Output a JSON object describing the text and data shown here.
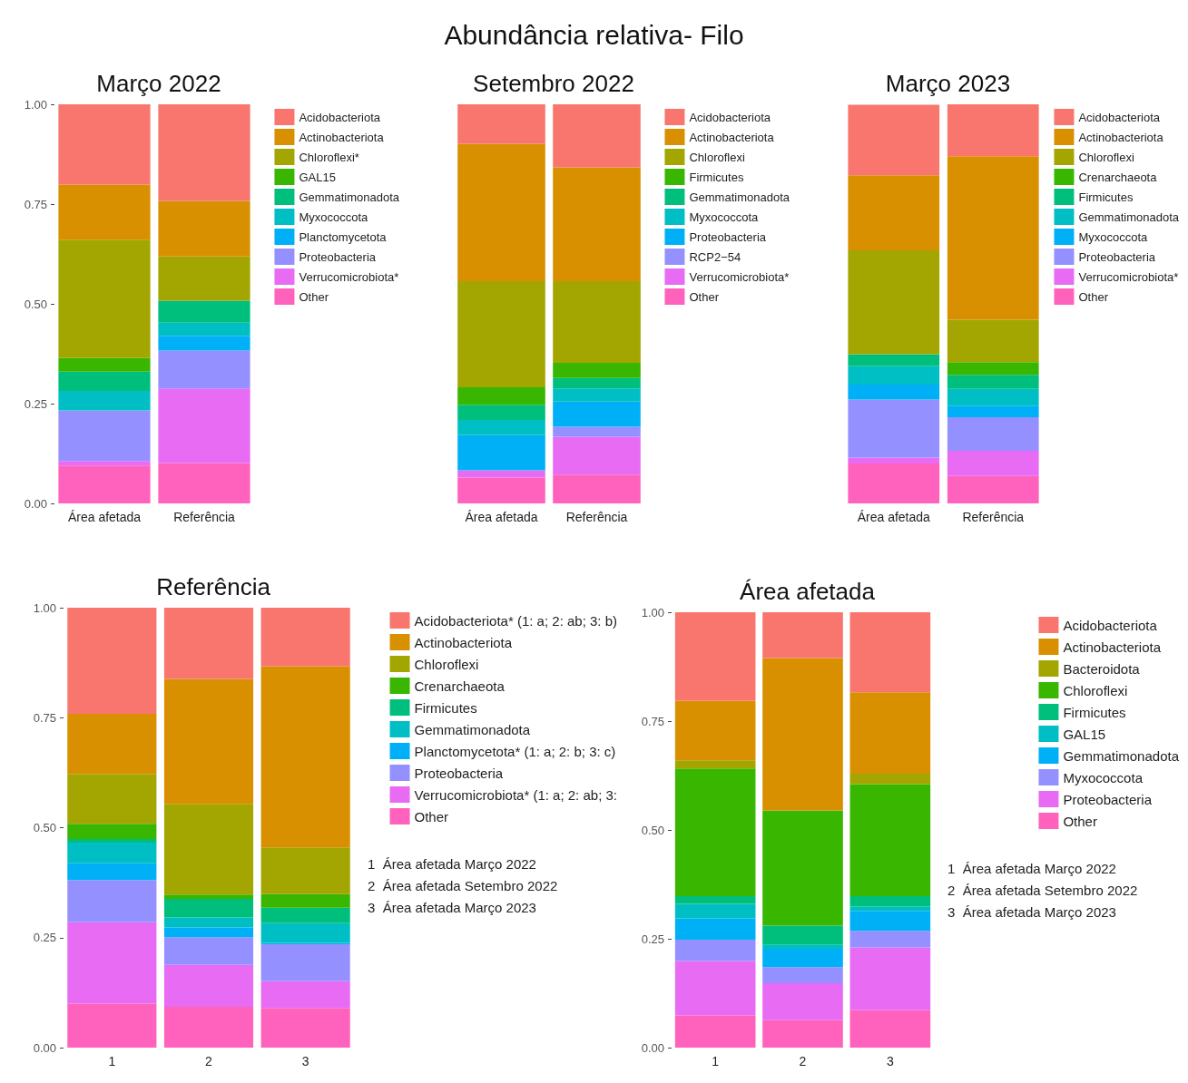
{
  "chart_data": [
    {
      "type": "bar",
      "title": "Março 2022",
      "annotations": [
        "Abundância relativa- Filo"
      ],
      "categories": [
        "Área afetada",
        "Referência"
      ],
      "stacked": true,
      "ylim": [
        0,
        1
      ],
      "yticks": [
        {
          "value": 0,
          "label": "0.00"
        },
        {
          "value": 0.25,
          "label": "0.25"
        },
        {
          "value": 0.5,
          "label": "0.50"
        },
        {
          "value": 0.75,
          "label": "0.75"
        },
        {
          "value": 1,
          "label": "1.00"
        }
      ],
      "grid": false,
      "legend": "right",
      "series": [
        {
          "name": "Other",
          "color": "#ff62bc",
          "values": [
            0.095,
            0.101
          ]
        },
        {
          "name": "Verrucomicrobiota*",
          "color": "#e76bf3",
          "values": [
            0.011,
            0.187
          ]
        },
        {
          "name": "Proteobacteria",
          "color": "#9590ff",
          "values": [
            0.127,
            0.095
          ]
        },
        {
          "name": "Planctomycetota",
          "color": "#00b0f6",
          "values": [
            0,
            0.037
          ]
        },
        {
          "name": "Myxococcota",
          "color": "#00bfc4",
          "values": [
            0.049,
            0.033
          ]
        },
        {
          "name": "Gemmatimonadota",
          "color": "#00bf7d",
          "values": [
            0.048,
            0.055
          ]
        },
        {
          "name": "GAL15",
          "color": "#39b600",
          "values": [
            0.034,
            0
          ]
        },
        {
          "name": "Chloroflexi*",
          "color": "#a3a500",
          "values": [
            0.297,
            0.111
          ]
        },
        {
          "name": "Actinobacteriota",
          "color": "#d89000",
          "values": [
            0.138,
            0.139
          ]
        },
        {
          "name": "Acidobacteriota",
          "color": "#f8766d",
          "values": [
            0.201,
            0.242
          ]
        }
      ]
    },
    {
      "type": "bar",
      "title": "Setembro 2022",
      "categories": [
        "Área afetada",
        "Referência"
      ],
      "stacked": true,
      "ylim": [
        0,
        1
      ],
      "tick_labels": "x",
      "grid": false,
      "legend": "right",
      "series": [
        {
          "name": "Other",
          "color": "#ff62bc",
          "values": [
            0.065,
            0.072
          ]
        },
        {
          "name": "Verrucomicrobiota*",
          "color": "#e76bf3",
          "values": [
            0.018,
            0.095
          ]
        },
        {
          "name": "RCP2−54",
          "color": "#9590ff",
          "values": [
            0,
            0.025
          ]
        },
        {
          "name": "Proteobacteria",
          "color": "#00b0f6",
          "values": [
            0.088,
            0.063
          ]
        },
        {
          "name": "Myxococcota",
          "color": "#00bfc4",
          "values": [
            0.038,
            0.033
          ]
        },
        {
          "name": "Gemmatimonadota",
          "color": "#00bf7d",
          "values": [
            0.038,
            0.026
          ]
        },
        {
          "name": "Firmicutes",
          "color": "#39b600",
          "values": [
            0.044,
            0.038
          ]
        },
        {
          "name": "Chloroflexi",
          "color": "#a3a500",
          "values": [
            0.266,
            0.205
          ]
        },
        {
          "name": "Actinobacteriota",
          "color": "#d89000",
          "values": [
            0.344,
            0.285
          ]
        },
        {
          "name": "Acidobacteriota",
          "color": "#f8766d",
          "values": [
            0.099,
            0.158
          ]
        }
      ]
    },
    {
      "type": "bar",
      "title": "Março 2023",
      "categories": [
        "Área afetada",
        "Referência"
      ],
      "stacked": true,
      "ylim": [
        0,
        1
      ],
      "tick_labels": "x",
      "grid": false,
      "legend": "right",
      "series": [
        {
          "name": "Other",
          "color": "#ff62bc",
          "values": [
            0.1,
            0.069
          ]
        },
        {
          "name": "Verrucomicrobiota*",
          "color": "#e76bf3",
          "values": [
            0.015,
            0.063
          ]
        },
        {
          "name": "Proteobacteria",
          "color": "#9590ff",
          "values": [
            0.145,
            0.084
          ]
        },
        {
          "name": "Myxococcota",
          "color": "#00b0f6",
          "values": [
            0.038,
            0.029
          ]
        },
        {
          "name": "Gemmatimonadota",
          "color": "#00bfc4",
          "values": [
            0.046,
            0.042
          ]
        },
        {
          "name": "Firmicutes",
          "color": "#00bf7d",
          "values": [
            0.03,
            0.035
          ]
        },
        {
          "name": "Crenarchaeota",
          "color": "#39b600",
          "values": [
            0,
            0.032
          ]
        },
        {
          "name": "Chloroflexi",
          "color": "#a3a500",
          "values": [
            0.26,
            0.106
          ]
        },
        {
          "name": "Actinobacteriota",
          "color": "#d89000",
          "values": [
            0.188,
            0.41
          ]
        },
        {
          "name": "Acidobacteriota",
          "color": "#f8766d",
          "values": [
            0.177,
            0.13
          ]
        }
      ]
    },
    {
      "type": "bar",
      "title": "Referência",
      "annotations": [
        "1  Área afetada Março 2022",
        "2  Área afetada Setembro 2022",
        "3  Área afetada Março 2023"
      ],
      "categories": [
        "1",
        "2",
        "3"
      ],
      "stacked": true,
      "ylim": [
        0,
        1
      ],
      "yticks": [
        {
          "value": 0,
          "label": "0.00"
        },
        {
          "value": 0.25,
          "label": "0.25"
        },
        {
          "value": 0.5,
          "label": "0.50"
        },
        {
          "value": 0.75,
          "label": "0.75"
        },
        {
          "value": 1,
          "label": "1.00"
        }
      ],
      "grid": false,
      "legend": "right",
      "series": [
        {
          "name": "Other",
          "color": "#ff62bc",
          "values": [
            0.1,
            0.093,
            0.09
          ]
        },
        {
          "name": "Verrucomicrobiota* (1: a; 2: ab; 3:",
          "color": "#e76bf3",
          "values": [
            0.185,
            0.095,
            0.061
          ]
        },
        {
          "name": "Proteobacteria",
          "color": "#9590ff",
          "values": [
            0.096,
            0.063,
            0.084
          ]
        },
        {
          "name": "Planctomycetota* (1: a; 2: b; 3: c)",
          "color": "#00b0f6",
          "values": [
            0.038,
            0.022,
            0.003
          ]
        },
        {
          "name": "Gemmatimonadota",
          "color": "#00bfc4",
          "values": [
            0.047,
            0.023,
            0.045
          ]
        },
        {
          "name": "Firmicutes",
          "color": "#00bf7d",
          "values": [
            0.008,
            0.042,
            0.035
          ]
        },
        {
          "name": "Crenarchaeota",
          "color": "#39b600",
          "values": [
            0.035,
            0.01,
            0.031
          ]
        },
        {
          "name": "Chloroflexi",
          "color": "#a3a500",
          "values": [
            0.113,
            0.206,
            0.106
          ]
        },
        {
          "name": "Actinobacteriota",
          "color": "#d89000",
          "values": [
            0.137,
            0.284,
            0.412
          ]
        },
        {
          "name": "Acidobacteriota* (1: a; 2: ab; 3: b)",
          "color": "#f8766d",
          "values": [
            0.241,
            0.162,
            0.133
          ]
        }
      ]
    },
    {
      "type": "bar",
      "title": "Área afetada",
      "annotations": [
        "1  Área afetada Março 2022",
        "2  Área afetada Setembro 2022",
        "3  Área afetada Março 2023"
      ],
      "categories": [
        "1",
        "2",
        "3"
      ],
      "stacked": true,
      "ylim": [
        0,
        1
      ],
      "yticks": [
        {
          "value": 0,
          "label": "0.00"
        },
        {
          "value": 0.25,
          "label": "0.25"
        },
        {
          "value": 0.5,
          "label": "0.50"
        },
        {
          "value": 0.75,
          "label": "0.75"
        },
        {
          "value": 1,
          "label": "1.00"
        }
      ],
      "grid": false,
      "legend": "right",
      "series": [
        {
          "name": "Other",
          "color": "#ff62bc",
          "values": [
            0.074,
            0.063,
            0.086
          ]
        },
        {
          "name": "Proteobacteria",
          "color": "#e76bf3",
          "values": [
            0.125,
            0.085,
            0.144
          ]
        },
        {
          "name": "Myxococcota",
          "color": "#9590ff",
          "values": [
            0.049,
            0.037,
            0.038
          ]
        },
        {
          "name": "Gemmatimonadota",
          "color": "#00b0f6",
          "values": [
            0.049,
            0.042,
            0.046
          ]
        },
        {
          "name": "GAL15",
          "color": "#00bfc4",
          "values": [
            0.033,
            0.009,
            0.01
          ]
        },
        {
          "name": "Firmicutes",
          "color": "#00bf7d",
          "values": [
            0.018,
            0.044,
            0.024
          ]
        },
        {
          "name": "Chloroflexi",
          "color": "#39b600",
          "values": [
            0.293,
            0.265,
            0.257
          ]
        },
        {
          "name": "Bacteroidota",
          "color": "#a3a500",
          "values": [
            0.019,
            0,
            0.024
          ]
        },
        {
          "name": "Actinobacteriota",
          "color": "#d89000",
          "values": [
            0.137,
            0.35,
            0.187
          ]
        },
        {
          "name": "Acidobacteriota",
          "color": "#f8766d",
          "values": [
            0.203,
            0.105,
            0.184
          ]
        }
      ]
    }
  ]
}
